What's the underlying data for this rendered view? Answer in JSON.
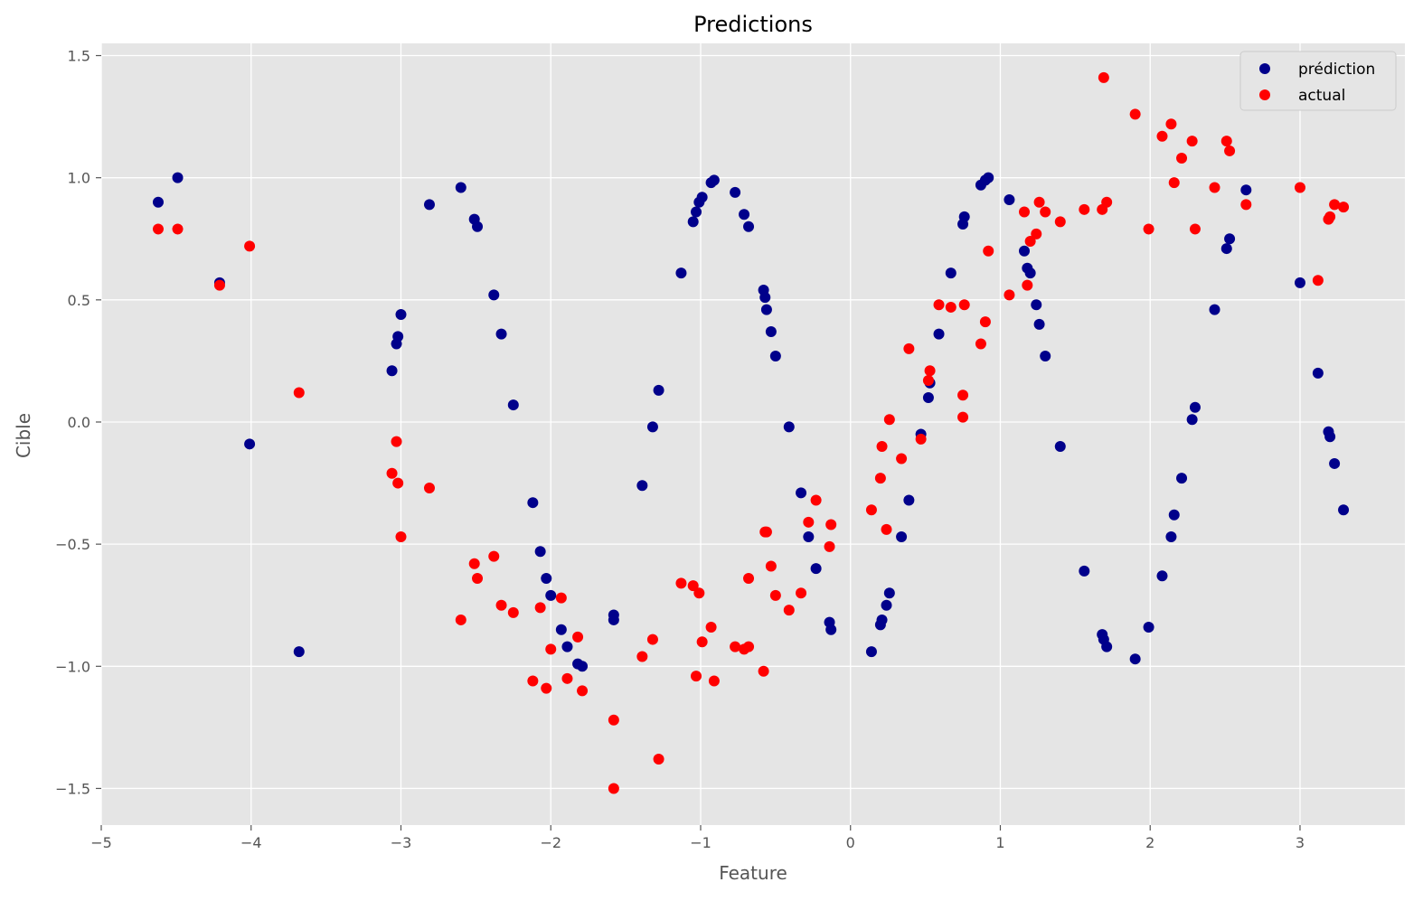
{
  "chart_data": {
    "type": "scatter",
    "title": "Predictions",
    "xlabel": "Feature",
    "ylabel": "Cible",
    "xlim": [
      -5,
      3.7
    ],
    "ylim": [
      -1.65,
      1.55
    ],
    "xticks": [
      -5,
      -4,
      -3,
      -2,
      -1,
      0,
      1,
      2,
      3
    ],
    "yticks": [
      -1.5,
      -1.0,
      -0.5,
      0.0,
      0.5,
      1.0,
      1.5
    ],
    "xtick_labels": [
      "−5",
      "−4",
      "−3",
      "−2",
      "−1",
      "0",
      "1",
      "2",
      "3"
    ],
    "ytick_labels": [
      "−1.5",
      "−1.0",
      "−0.5",
      "0.0",
      "0.5",
      "1.0",
      "1.5"
    ],
    "grid": true,
    "legend_position": "top-right",
    "background": "#e5e5e5",
    "series": [
      {
        "name": "prédiction",
        "color": "#00008b",
        "points": [
          [
            -4.62,
            0.9
          ],
          [
            -4.49,
            1.0
          ],
          [
            -4.21,
            0.57
          ],
          [
            -4.01,
            -0.09
          ],
          [
            -3.68,
            -0.94
          ],
          [
            -3.06,
            0.21
          ],
          [
            -3.03,
            0.32
          ],
          [
            -3.02,
            0.35
          ],
          [
            -3.0,
            0.44
          ],
          [
            -2.81,
            0.89
          ],
          [
            -2.6,
            0.96
          ],
          [
            -2.51,
            0.83
          ],
          [
            -2.49,
            0.8
          ],
          [
            -2.38,
            0.52
          ],
          [
            -2.33,
            0.36
          ],
          [
            -2.25,
            0.07
          ],
          [
            -2.12,
            -0.33
          ],
          [
            -2.07,
            -0.53
          ],
          [
            -2.03,
            -0.64
          ],
          [
            -2.0,
            -0.71
          ],
          [
            -1.93,
            -0.85
          ],
          [
            -1.89,
            -0.92
          ],
          [
            -1.82,
            -0.99
          ],
          [
            -1.79,
            -1.0
          ],
          [
            -1.58,
            -0.79
          ],
          [
            -1.58,
            -0.81
          ],
          [
            -1.39,
            -0.26
          ],
          [
            -1.32,
            -0.02
          ],
          [
            -1.28,
            0.13
          ],
          [
            -1.13,
            0.61
          ],
          [
            -1.05,
            0.82
          ],
          [
            -1.03,
            0.86
          ],
          [
            -1.01,
            0.9
          ],
          [
            -0.99,
            0.92
          ],
          [
            -0.93,
            0.98
          ],
          [
            -0.91,
            0.99
          ],
          [
            -0.77,
            0.94
          ],
          [
            -0.71,
            0.85
          ],
          [
            -0.68,
            0.8
          ],
          [
            -0.58,
            0.54
          ],
          [
            -0.57,
            0.51
          ],
          [
            -0.56,
            0.46
          ],
          [
            -0.53,
            0.37
          ],
          [
            -0.5,
            0.27
          ],
          [
            -0.41,
            -0.02
          ],
          [
            -0.33,
            -0.29
          ],
          [
            -0.28,
            -0.47
          ],
          [
            -0.23,
            -0.6
          ],
          [
            -0.14,
            -0.82
          ],
          [
            -0.13,
            -0.85
          ],
          [
            0.14,
            -0.94
          ],
          [
            0.2,
            -0.83
          ],
          [
            0.21,
            -0.81
          ],
          [
            0.24,
            -0.75
          ],
          [
            0.26,
            -0.7
          ],
          [
            0.34,
            -0.47
          ],
          [
            0.39,
            -0.32
          ],
          [
            0.47,
            -0.05
          ],
          [
            0.52,
            0.1
          ],
          [
            0.53,
            0.16
          ],
          [
            0.59,
            0.36
          ],
          [
            0.67,
            0.61
          ],
          [
            0.75,
            0.81
          ],
          [
            0.76,
            0.84
          ],
          [
            0.87,
            0.97
          ],
          [
            0.9,
            0.99
          ],
          [
            0.92,
            1.0
          ],
          [
            1.06,
            0.91
          ],
          [
            1.16,
            0.7
          ],
          [
            1.18,
            0.63
          ],
          [
            1.2,
            0.61
          ],
          [
            1.24,
            0.48
          ],
          [
            1.26,
            0.4
          ],
          [
            1.3,
            0.27
          ],
          [
            1.4,
            -0.1
          ],
          [
            1.56,
            -0.61
          ],
          [
            1.68,
            -0.87
          ],
          [
            1.69,
            -0.89
          ],
          [
            1.71,
            -0.92
          ],
          [
            1.9,
            -0.97
          ],
          [
            1.99,
            -0.84
          ],
          [
            2.08,
            -0.63
          ],
          [
            2.14,
            -0.47
          ],
          [
            2.16,
            -0.38
          ],
          [
            2.21,
            -0.23
          ],
          [
            2.28,
            0.01
          ],
          [
            2.3,
            0.06
          ],
          [
            2.43,
            0.46
          ],
          [
            2.51,
            0.71
          ],
          [
            2.53,
            0.75
          ],
          [
            2.64,
            0.95
          ],
          [
            3.0,
            0.57
          ],
          [
            3.12,
            0.2
          ],
          [
            3.19,
            -0.04
          ],
          [
            3.2,
            -0.06
          ],
          [
            3.23,
            -0.17
          ],
          [
            3.29,
            -0.36
          ]
        ]
      },
      {
        "name": "actual",
        "color": "#ff0000",
        "points": [
          [
            -4.62,
            0.79
          ],
          [
            -4.49,
            0.79
          ],
          [
            -4.21,
            0.56
          ],
          [
            -4.01,
            0.72
          ],
          [
            -3.68,
            0.12
          ],
          [
            -3.06,
            -0.21
          ],
          [
            -3.03,
            -0.08
          ],
          [
            -3.02,
            -0.25
          ],
          [
            -3.0,
            -0.47
          ],
          [
            -2.81,
            -0.27
          ],
          [
            -2.6,
            -0.81
          ],
          [
            -2.51,
            -0.58
          ],
          [
            -2.49,
            -0.64
          ],
          [
            -2.38,
            -0.55
          ],
          [
            -2.33,
            -0.75
          ],
          [
            -2.25,
            -0.78
          ],
          [
            -2.12,
            -1.06
          ],
          [
            -2.07,
            -0.76
          ],
          [
            -2.03,
            -1.09
          ],
          [
            -2.0,
            -0.93
          ],
          [
            -1.93,
            -0.72
          ],
          [
            -1.89,
            -1.05
          ],
          [
            -1.82,
            -0.88
          ],
          [
            -1.79,
            -1.1
          ],
          [
            -1.58,
            -1.22
          ],
          [
            -1.58,
            -1.5
          ],
          [
            -1.39,
            -0.96
          ],
          [
            -1.32,
            -0.89
          ],
          [
            -1.28,
            -1.38
          ],
          [
            -1.13,
            -0.66
          ],
          [
            -1.05,
            -0.67
          ],
          [
            -1.03,
            -1.04
          ],
          [
            -1.01,
            -0.7
          ],
          [
            -0.99,
            -0.9
          ],
          [
            -0.93,
            -0.84
          ],
          [
            -0.91,
            -1.06
          ],
          [
            -0.77,
            -0.92
          ],
          [
            -0.71,
            -0.93
          ],
          [
            -0.68,
            -0.92
          ],
          [
            -0.68,
            -0.64
          ],
          [
            -0.58,
            -1.02
          ],
          [
            -0.57,
            -0.45
          ],
          [
            -0.56,
            -0.45
          ],
          [
            -0.53,
            -0.59
          ],
          [
            -0.5,
            -0.71
          ],
          [
            -0.41,
            -0.77
          ],
          [
            -0.33,
            -0.7
          ],
          [
            -0.28,
            -0.41
          ],
          [
            -0.23,
            -0.32
          ],
          [
            -0.14,
            -0.51
          ],
          [
            -0.13,
            -0.42
          ],
          [
            0.14,
            -0.36
          ],
          [
            0.2,
            -0.23
          ],
          [
            0.21,
            -0.1
          ],
          [
            0.24,
            -0.44
          ],
          [
            0.26,
            0.01
          ],
          [
            0.34,
            -0.15
          ],
          [
            0.39,
            0.3
          ],
          [
            0.47,
            -0.07
          ],
          [
            0.52,
            0.17
          ],
          [
            0.53,
            0.21
          ],
          [
            0.59,
            0.48
          ],
          [
            0.67,
            0.47
          ],
          [
            0.75,
            0.02
          ],
          [
            0.75,
            0.11
          ],
          [
            0.76,
            0.48
          ],
          [
            0.87,
            0.32
          ],
          [
            0.9,
            0.41
          ],
          [
            0.92,
            0.7
          ],
          [
            1.06,
            0.52
          ],
          [
            1.16,
            0.86
          ],
          [
            1.18,
            0.56
          ],
          [
            1.2,
            0.74
          ],
          [
            1.24,
            0.77
          ],
          [
            1.26,
            0.9
          ],
          [
            1.3,
            0.86
          ],
          [
            1.4,
            0.82
          ],
          [
            1.56,
            0.87
          ],
          [
            1.68,
            0.87
          ],
          [
            1.71,
            0.9
          ],
          [
            1.69,
            1.41
          ],
          [
            1.9,
            1.26
          ],
          [
            1.99,
            0.79
          ],
          [
            2.08,
            1.17
          ],
          [
            2.14,
            1.22
          ],
          [
            2.16,
            0.98
          ],
          [
            2.21,
            1.08
          ],
          [
            2.28,
            1.15
          ],
          [
            2.3,
            0.79
          ],
          [
            2.43,
            0.96
          ],
          [
            2.51,
            1.15
          ],
          [
            2.53,
            1.11
          ],
          [
            2.64,
            0.89
          ],
          [
            3.0,
            0.96
          ],
          [
            3.12,
            0.58
          ],
          [
            3.19,
            0.83
          ],
          [
            3.2,
            0.84
          ],
          [
            3.23,
            0.89
          ],
          [
            3.29,
            0.88
          ]
        ]
      }
    ]
  }
}
